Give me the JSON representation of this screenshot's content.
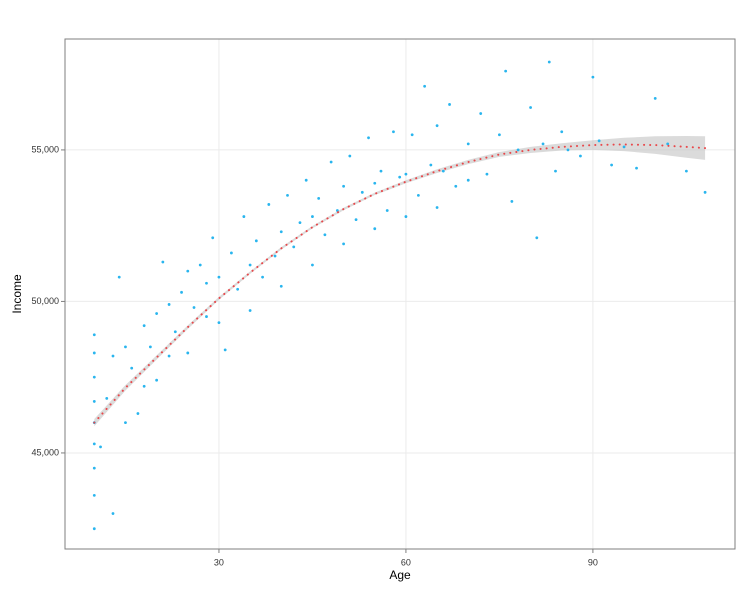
{
  "chart_data": {
    "type": "scatter",
    "x_label": "Age",
    "y_label": "Income",
    "xlim": [
      5.3,
      112.8
    ],
    "ylim": [
      41830,
      58660
    ],
    "xticks": [
      30,
      60,
      90
    ],
    "yticks": [
      {
        "value": 45000,
        "label": "45,000"
      },
      {
        "value": 50000,
        "label": "50,000"
      },
      {
        "value": 55000,
        "label": "55,000"
      }
    ],
    "grid": true,
    "series": [
      {
        "color": "#29b5ee",
        "x": [
          10,
          10,
          10,
          10,
          10,
          10,
          10,
          10,
          10,
          11,
          12,
          13,
          13,
          14,
          15,
          15,
          16,
          17,
          18,
          18,
          19,
          20,
          20,
          21,
          22,
          22,
          23,
          24,
          25,
          25,
          26,
          27,
          28,
          28,
          29,
          30,
          30,
          31,
          32,
          33,
          34,
          35,
          35,
          36,
          37,
          38,
          39,
          40,
          40,
          41,
          42,
          43,
          44,
          45,
          45,
          46,
          47,
          48,
          49,
          50,
          50,
          51,
          52,
          53,
          54,
          55,
          55,
          56,
          57,
          58,
          59,
          60,
          60,
          61,
          62,
          63,
          64,
          65,
          65,
          66,
          67,
          68,
          70,
          70,
          72,
          73,
          75,
          76,
          77,
          78,
          80,
          81,
          82,
          83,
          84,
          85,
          86,
          88,
          90,
          91,
          93,
          95,
          97,
          100,
          102,
          105,
          108
        ],
        "values": [
          42500,
          43600,
          44500,
          45300,
          46000,
          46700,
          47500,
          48300,
          48900,
          45200,
          46800,
          43000,
          48200,
          50800,
          46000,
          48500,
          47800,
          46300,
          49200,
          47200,
          48500,
          49600,
          47400,
          51300,
          48200,
          49900,
          49000,
          50300,
          48300,
          51000,
          49800,
          51200,
          49500,
          50600,
          52100,
          50800,
          49300,
          48400,
          51600,
          50400,
          52800,
          51200,
          49700,
          52000,
          50800,
          53200,
          51500,
          52300,
          50500,
          53500,
          51800,
          52600,
          54000,
          52800,
          51200,
          53400,
          52200,
          54600,
          53000,
          53800,
          51900,
          54800,
          52700,
          53600,
          55400,
          53900,
          52400,
          54300,
          53000,
          55600,
          54100,
          54200,
          52800,
          55500,
          53500,
          57100,
          54500,
          53100,
          55800,
          54300,
          56500,
          53800,
          55200,
          54000,
          56200,
          54200,
          55500,
          57600,
          53300,
          55000,
          56400,
          52100,
          55200,
          57900,
          54300,
          55600,
          55000,
          54800,
          57400,
          55300,
          54500,
          55100,
          54400,
          56700,
          55200,
          54300,
          53600
        ]
      }
    ],
    "smooth": {
      "color": "#e8474a",
      "band_color": "#bdbdbd",
      "x": [
        10,
        15,
        20,
        25,
        30,
        35,
        40,
        45,
        50,
        55,
        60,
        65,
        70,
        75,
        80,
        85,
        90,
        95,
        100,
        105,
        108
      ],
      "values": [
        46000,
        47150,
        48150,
        49150,
        50100,
        50950,
        51750,
        52450,
        53050,
        53550,
        53950,
        54300,
        54600,
        54850,
        55000,
        55100,
        55160,
        55180,
        55160,
        55100,
        55060
      ],
      "lower": [
        45880,
        47060,
        48080,
        49090,
        50050,
        50910,
        51710,
        52410,
        53010,
        53510,
        53900,
        54240,
        54530,
        54770,
        54900,
        54980,
        55000,
        54960,
        54870,
        54740,
        54670
      ],
      "upper": [
        46120,
        47240,
        48220,
        49210,
        50150,
        50990,
        51790,
        52490,
        53090,
        53590,
        54000,
        54360,
        54670,
        54930,
        55100,
        55220,
        55320,
        55400,
        55450,
        55460,
        55450
      ]
    }
  }
}
